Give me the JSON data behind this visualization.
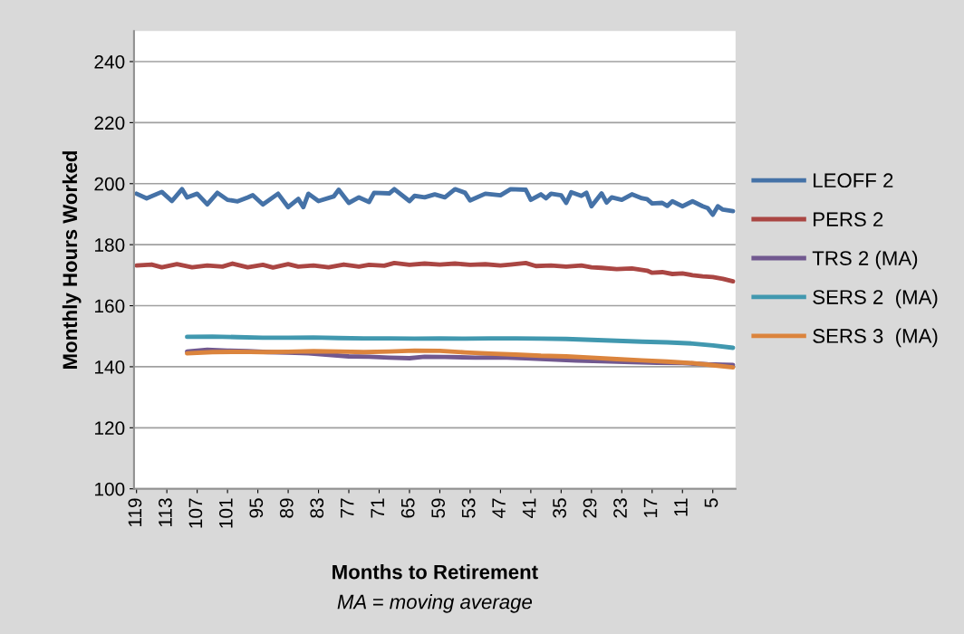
{
  "chart_data": {
    "type": "line",
    "xlabel": "Months to Retirement",
    "ylabel": "Monthly Hours Worked",
    "annotations": [
      "MA = moving average"
    ],
    "xlim": [
      119.5,
      0.5
    ],
    "xticks": [
      119,
      113,
      107,
      101,
      95,
      89,
      83,
      77,
      71,
      65,
      59,
      53,
      47,
      41,
      35,
      29,
      23,
      17,
      11,
      5
    ],
    "ylim": [
      100,
      250
    ],
    "yticks": [
      100,
      120,
      140,
      160,
      180,
      200,
      220,
      240
    ],
    "grid": "y",
    "legend": "right",
    "marker": "none",
    "line_style": "solid",
    "series": [
      {
        "name": "LEOFF 2",
        "color": "#4572a7",
        "x": [
          119,
          117,
          114,
          112,
          110,
          109,
          107,
          105,
          103,
          101,
          99,
          97,
          96,
          94,
          91,
          89,
          87,
          86,
          85,
          83,
          80,
          79,
          77,
          75,
          73,
          72,
          69,
          68,
          65,
          64,
          62,
          60,
          58,
          56,
          54,
          53,
          50,
          47,
          45,
          42,
          41,
          39,
          38,
          37,
          35,
          34,
          33,
          31,
          30,
          29,
          27,
          26,
          25,
          23,
          21,
          19,
          18,
          17,
          15,
          14,
          13,
          11,
          9,
          7,
          6,
          5,
          4,
          3,
          1
        ],
        "values": [
          196.7,
          195.2,
          197.3,
          194.3,
          198.2,
          195.5,
          196.7,
          193.2,
          197,
          194.7,
          194.2,
          195.5,
          196.2,
          193.2,
          196.7,
          192.3,
          195,
          192.3,
          196.7,
          194.3,
          195.8,
          198,
          193.7,
          195.5,
          194,
          197,
          196.8,
          198.2,
          194.3,
          196,
          195.5,
          196.5,
          195.5,
          198.2,
          197,
          194.5,
          196.7,
          196.2,
          198.2,
          198,
          194.7,
          196.5,
          195.2,
          196.7,
          196.2,
          193.7,
          197.2,
          196,
          197,
          192.6,
          196.8,
          193.8,
          195.5,
          194.7,
          196.5,
          195.2,
          194.9,
          193.5,
          193.7,
          192.7,
          194.2,
          192.6,
          194.2,
          192.6,
          192,
          189.8,
          192.6,
          191.5,
          191
        ]
      },
      {
        "name": "PERS 2",
        "color": "#aa4643",
        "x": [
          119,
          116,
          114,
          111,
          108,
          105,
          102,
          100,
          97,
          94,
          92,
          89,
          87,
          84,
          81,
          78,
          75,
          73,
          70,
          68,
          65,
          62,
          59,
          56,
          53,
          50,
          47,
          45,
          42,
          40,
          37,
          34,
          31,
          29,
          27,
          24,
          21,
          18,
          17,
          15,
          13,
          11,
          9,
          7,
          5,
          3,
          1
        ],
        "values": [
          173.2,
          173.5,
          172.6,
          173.6,
          172.6,
          173.2,
          172.8,
          173.8,
          172.6,
          173.4,
          172.5,
          173.6,
          172.8,
          173.2,
          172.6,
          173.5,
          172.8,
          173.4,
          173.1,
          174,
          173.4,
          173.8,
          173.5,
          173.8,
          173.4,
          173.6,
          173.2,
          173.5,
          174,
          173,
          173.2,
          172.8,
          173.2,
          172.6,
          172.4,
          172,
          172.2,
          171.5,
          170.8,
          171,
          170.4,
          170.6,
          170,
          169.6,
          169.4,
          168.8,
          168
        ]
      },
      {
        "name": "TRS 2 (MA)",
        "color": "#71588f",
        "x": [
          109,
          105,
          101,
          97,
          93,
          89,
          85,
          81,
          77,
          73,
          69,
          65,
          62,
          58,
          52,
          47,
          42,
          37,
          32,
          27,
          21,
          16,
          11,
          6,
          3,
          1
        ],
        "values": [
          145,
          145.6,
          145.3,
          145.1,
          144.8,
          144.6,
          144.4,
          143.9,
          143.4,
          143.3,
          143,
          142.8,
          143.3,
          143.2,
          143,
          143.1,
          142.8,
          142.4,
          142,
          141.8,
          141.5,
          141.3,
          141.2,
          140.8,
          140.7,
          140.6
        ]
      },
      {
        "name": "SERS 2  (MA)",
        "color": "#4198af",
        "x": [
          109,
          104,
          99,
          94,
          89,
          84,
          79,
          74,
          69,
          64,
          59,
          54,
          49,
          44,
          39,
          34,
          29,
          24,
          19,
          14,
          9,
          5,
          1
        ],
        "values": [
          149.8,
          149.9,
          149.7,
          149.5,
          149.5,
          149.6,
          149.4,
          149.3,
          149.3,
          149.2,
          149.3,
          149.2,
          149.3,
          149.3,
          149.2,
          149.1,
          148.8,
          148.5,
          148.2,
          148,
          147.6,
          147,
          146.2
        ]
      },
      {
        "name": "SERS 3  (MA)",
        "color": "#db843d",
        "x": [
          109,
          104,
          99,
          94,
          89,
          84,
          79,
          74,
          69,
          64,
          59,
          54,
          49,
          44,
          39,
          34,
          29,
          24,
          19,
          14,
          9,
          5,
          1
        ],
        "values": [
          144.4,
          144.8,
          144.9,
          144.8,
          144.9,
          145.1,
          145,
          144.8,
          145,
          145.3,
          145.2,
          144.7,
          144.3,
          144,
          143.6,
          143.4,
          143,
          142.5,
          142.1,
          141.7,
          141.2,
          140.5,
          139.8
        ]
      }
    ]
  }
}
